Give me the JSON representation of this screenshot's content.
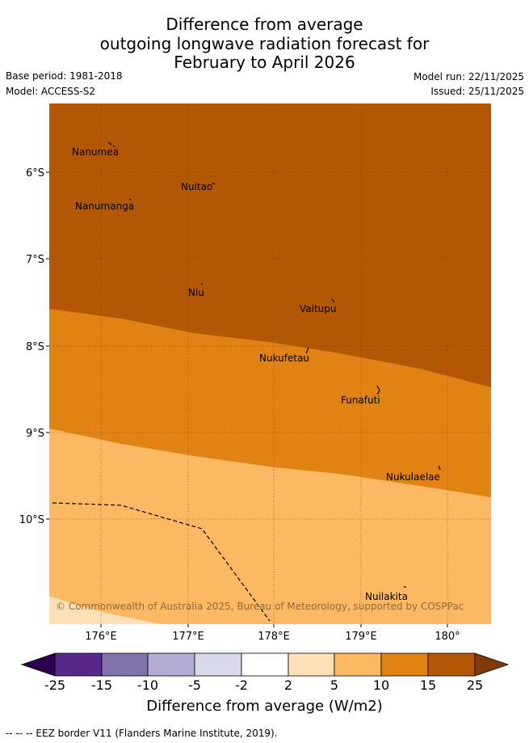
{
  "header": {
    "title_lines": [
      "Difference from average",
      "outgoing longwave radiation forecast for",
      "February to April 2026"
    ],
    "base_period": "Base period: 1981-2018",
    "model": "Model: ACCESS-S2",
    "model_run": "Model run: 22/11/2025",
    "issued": "Issued: 25/11/2025"
  },
  "map": {
    "lat_labels": [
      "6°S",
      "7°S",
      "8°S",
      "9°S",
      "10°S"
    ],
    "lon_labels": [
      "176°E",
      "177°E",
      "178°E",
      "179°E",
      "180°"
    ],
    "places": [
      "Nanumea",
      "Nuitao",
      "Nanumanga",
      "Niu",
      "Vaitupu",
      "Nukufetau",
      "Funafuti",
      "Nukulaelae",
      "Nuilakita"
    ],
    "copyright": "© Commonwealth of Australia 2025, Bureau of Meteorology, supported by COSPPac",
    "colors": {
      "band_15_25": "#b25807",
      "band_10_15": "#e08214",
      "band_5_10": "#fdb863",
      "band_2_5": "#fee0b6"
    }
  },
  "colorbar": {
    "title": "Difference from average (W/m2)",
    "labels": [
      "-25",
      "-15",
      "-10",
      "-5",
      "-2",
      "2",
      "5",
      "10",
      "15",
      "25"
    ],
    "colors": [
      "#2d004b",
      "#542788",
      "#8073ac",
      "#b2abd2",
      "#d8daeb",
      "#ffffff",
      "#fee0b6",
      "#fdb863",
      "#e08214",
      "#b35806",
      "#7f3b08"
    ]
  },
  "legend_note": "--  --  -- EEZ border V11 (Flanders Marine Institute, 2019)."
}
